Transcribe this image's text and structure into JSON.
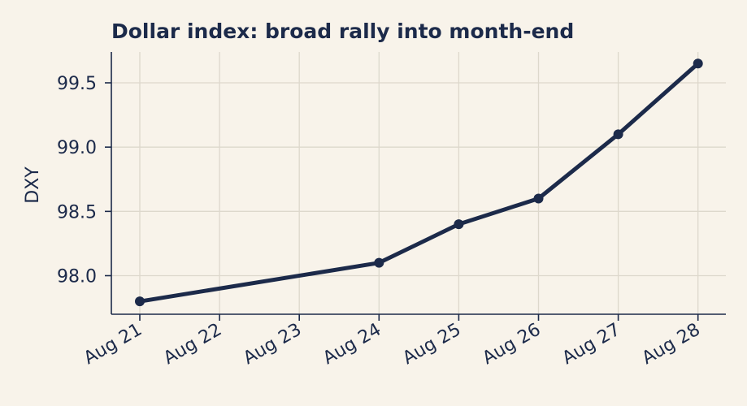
{
  "chart_data": {
    "type": "line",
    "title": "Dollar index: broad rally into month-end",
    "xlabel": "",
    "ylabel": "DXY",
    "x": [
      "Aug 21",
      "Aug 22",
      "Aug 23",
      "Aug 24",
      "Aug 25",
      "Aug 26",
      "Aug 27",
      "Aug 28"
    ],
    "series": [
      {
        "values": [
          97.8,
          null,
          null,
          98.1,
          98.4,
          98.6,
          99.1,
          99.65
        ],
        "color": "#1c2a4a"
      }
    ],
    "yticks": [
      98.0,
      98.5,
      99.0,
      99.5
    ],
    "ytick_labels": [
      "98.0",
      "98.5",
      "99.0",
      "99.5"
    ],
    "ylim": [
      97.7,
      99.74
    ],
    "grid": true,
    "colors": {
      "background": "#f8f3ea",
      "line": "#1c2a4a",
      "grid": "#ddd8cc",
      "text": "#1c2a4a"
    }
  }
}
